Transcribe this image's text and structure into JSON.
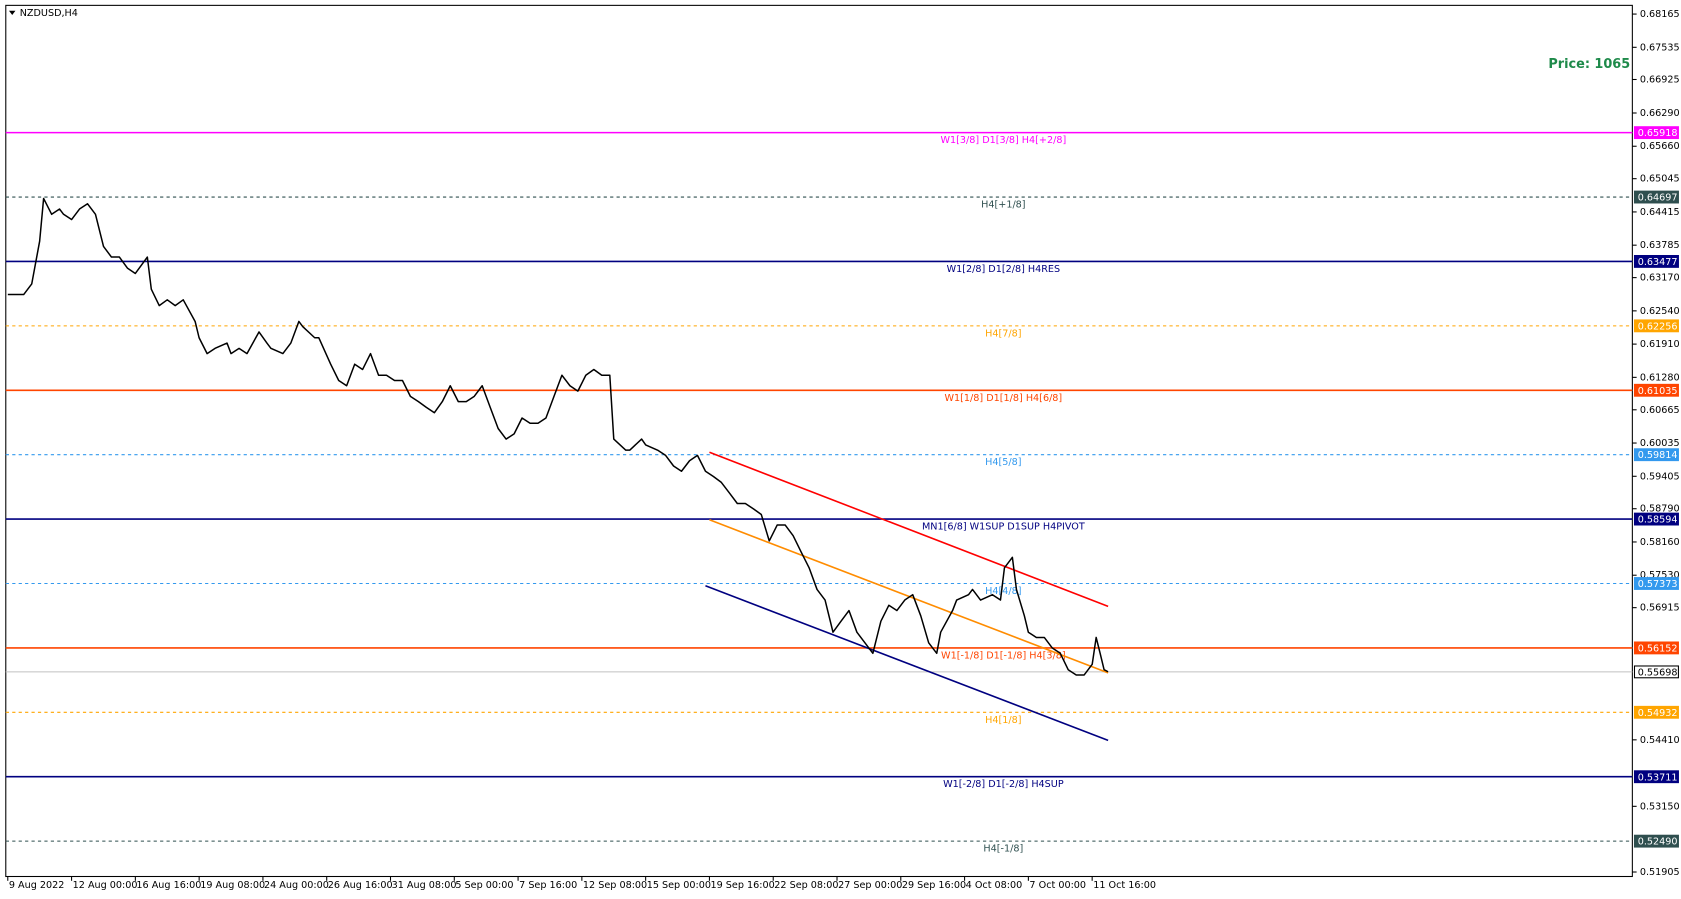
{
  "chart_data": {
    "type": "line",
    "title": "NZDUSD,H4",
    "annotation": "Price: 1065",
    "color": "#000000",
    "x": [
      0,
      4,
      6,
      8,
      9,
      11,
      13,
      14,
      16,
      18,
      20,
      22,
      24,
      26,
      28,
      30,
      32,
      35,
      36,
      38,
      40,
      42,
      44,
      47,
      48,
      50,
      52,
      55,
      56,
      58,
      60,
      63,
      65,
      66,
      69,
      71,
      73,
      74,
      77,
      78,
      81,
      83,
      85,
      87,
      89,
      91,
      93,
      95,
      97,
      99,
      101,
      103,
      105,
      107,
      109,
      111,
      113,
      115,
      117,
      119,
      121,
      123,
      125,
      127,
      129,
      131,
      133,
      135,
      137,
      139,
      141,
      143,
      145,
      147,
      149,
      151,
      152,
      155,
      156,
      159,
      160,
      163,
      165,
      167,
      169,
      171,
      173,
      175,
      177,
      179,
      181,
      183,
      185,
      187,
      189,
      191,
      193,
      195,
      197,
      199,
      201,
      203,
      205,
      207,
      209,
      211,
      213,
      215,
      217,
      219,
      221,
      223,
      225,
      227,
      229,
      231,
      233,
      234,
      237,
      238,
      241,
      242,
      244,
      247,
      249,
      250,
      252,
      253,
      255,
      256,
      258,
      260,
      262,
      264,
      266,
      268,
      270,
      272,
      273,
      274,
      275,
      276
    ],
    "values": [
      0.6285,
      0.6285,
      0.6305,
      0.6386,
      0.6467,
      0.6437,
      0.6447,
      0.6437,
      0.6427,
      0.6447,
      0.6457,
      0.6437,
      0.6376,
      0.6356,
      0.6356,
      0.6335,
      0.6325,
      0.6356,
      0.6295,
      0.6264,
      0.6275,
      0.6264,
      0.6275,
      0.6234,
      0.6203,
      0.6173,
      0.6183,
      0.6193,
      0.6173,
      0.6183,
      0.6173,
      0.6214,
      0.6193,
      0.6183,
      0.6173,
      0.6193,
      0.6234,
      0.6224,
      0.6203,
      0.6203,
      0.6153,
      0.6122,
      0.6112,
      0.6153,
      0.6143,
      0.6173,
      0.6132,
      0.6132,
      0.6122,
      0.6122,
      0.6092,
      0.6082,
      0.6071,
      0.6061,
      0.6082,
      0.6112,
      0.6082,
      0.6082,
      0.6092,
      0.6112,
      0.6071,
      0.6031,
      0.6011,
      0.6021,
      0.6051,
      0.6041,
      0.6041,
      0.6051,
      0.6092,
      0.6132,
      0.6112,
      0.6102,
      0.6132,
      0.6143,
      0.6132,
      0.6132,
      0.6011,
      0.599,
      0.599,
      0.6011,
      0.6,
      0.599,
      0.598,
      0.596,
      0.595,
      0.597,
      0.598,
      0.595,
      0.594,
      0.5929,
      0.5909,
      0.5889,
      0.5889,
      0.5879,
      0.5868,
      0.5818,
      0.5848,
      0.5848,
      0.5828,
      0.5797,
      0.5767,
      0.5726,
      0.5706,
      0.5645,
      0.5666,
      0.5686,
      0.5645,
      0.5625,
      0.5605,
      0.5666,
      0.5696,
      0.5686,
      0.5706,
      0.5716,
      0.5676,
      0.5625,
      0.5605,
      0.5645,
      0.5686,
      0.5706,
      0.5716,
      0.5726,
      0.5706,
      0.5716,
      0.5706,
      0.5767,
      0.5787,
      0.5726,
      0.5676,
      0.5645,
      0.5635,
      0.5635,
      0.5615,
      0.5605,
      0.5574,
      0.5564,
      0.5564,
      0.5584,
      0.5635,
      0.5605,
      0.5574,
      0.557
    ],
    "xlim": [
      -0.5,
      407.5
    ],
    "ylim": [
      0.5182,
      0.6833
    ],
    "xticks": [
      {
        "value": 0,
        "label": "9 Aug 2022"
      },
      {
        "value": 16,
        "label": "12 Aug 00:00"
      },
      {
        "value": 32,
        "label": "16 Aug 16:00"
      },
      {
        "value": 48,
        "label": "19 Aug 08:00"
      },
      {
        "value": 64,
        "label": "24 Aug 00:00"
      },
      {
        "value": 80,
        "label": "26 Aug 16:00"
      },
      {
        "value": 96,
        "label": "31 Aug 08:00"
      },
      {
        "value": 112,
        "label": "5 Sep 00:00"
      },
      {
        "value": 128,
        "label": "7 Sep 16:00"
      },
      {
        "value": 144,
        "label": "12 Sep 08:00"
      },
      {
        "value": 160,
        "label": "15 Sep 00:00"
      },
      {
        "value": 176,
        "label": "19 Sep 16:00"
      },
      {
        "value": 192,
        "label": "22 Sep 08:00"
      },
      {
        "value": 208,
        "label": "27 Sep 00:00"
      },
      {
        "value": 224,
        "label": "29 Sep 16:00"
      },
      {
        "value": 240,
        "label": "4 Oct 08:00"
      },
      {
        "value": 256,
        "label": "7 Oct 00:00"
      },
      {
        "value": 272,
        "label": "11 Oct 16:00"
      }
    ],
    "yticks": [
      0.68165,
      0.67535,
      0.66925,
      {
        "value": 0.6629,
        "label": "0.66290"
      },
      {
        "value": 0.6566,
        "label": "0.65660"
      },
      0.65045,
      0.64415,
      0.63785,
      {
        "value": 0.6317,
        "label": "0.63170"
      },
      {
        "value": 0.6254,
        "label": "0.62540"
      },
      {
        "value": 0.6191,
        "label": "0.61910"
      },
      {
        "value": 0.6128,
        "label": "0.61280"
      },
      0.60665,
      0.60035,
      0.59405,
      {
        "value": 0.5879,
        "label": "0.58790"
      },
      {
        "value": 0.5816,
        "label": "0.58160"
      },
      {
        "value": 0.5753,
        "label": "0.57530"
      },
      0.56915,
      {
        "value": 0.5441,
        "label": "0.54410"
      },
      {
        "value": 0.5315,
        "label": "0.53150"
      },
      0.51905
    ],
    "levels": [
      {
        "value": 0.65918,
        "text": "W1[3/8] D1[3/8] H4[+2/8]",
        "color": "#ff00ff",
        "dashed": false
      },
      {
        "value": 0.64697,
        "text": "H4[+1/8]",
        "color": "#2f4f4f",
        "dashed": true
      },
      {
        "value": 0.63477,
        "text": "W1[2/8] D1[2/8] H4RES",
        "color": "#000080",
        "dashed": false
      },
      {
        "value": 0.62256,
        "text": "H4[7/8]",
        "color": "#ffa500",
        "dashed": true
      },
      {
        "value": 0.61035,
        "text": "W1[1/8] D1[1/8] H4[6/8]",
        "color": "#ff4500",
        "dashed": false
      },
      {
        "value": 0.59814,
        "text": "H4[5/8]",
        "color": "#3399ee",
        "dashed": true
      },
      {
        "value": 0.58594,
        "text": "MN1[6/8] W1SUP D1SUP H4PIVOT",
        "color": "#000080",
        "dashed": false
      },
      {
        "value": 0.57373,
        "text": "H4[4/8]",
        "color": "#3399ee",
        "dashed": true
      },
      {
        "value": 0.56152,
        "text": "W1[-1/8] D1[-1/8] H4[3/8]",
        "color": "#ff4500",
        "dashed": false
      },
      {
        "value": 0.54932,
        "text": "H4[1/8]",
        "color": "#ffa500",
        "dashed": true
      },
      {
        "value": 0.53711,
        "text": "W1[-2/8] D1[-2/8] H4SUP",
        "color": "#000080",
        "dashed": false
      },
      {
        "value": {
          "value": 0.5249,
          "label": "0.52490"
        },
        "text": "H4[-1/8]",
        "color": "#2f4f4f",
        "dashed": true
      }
    ],
    "current_price": 0.55698,
    "trendlines": [
      {
        "color": "#ff0000",
        "x": [
          176,
          276
        ],
        "values": [
          0.5986,
          0.5694
        ]
      },
      {
        "color": "#ff8c00",
        "x": [
          176,
          276
        ],
        "values": [
          0.5858,
          0.5568
        ]
      },
      {
        "color": "#000080",
        "x": [
          175,
          276
        ],
        "values": [
          0.5733,
          0.544
        ]
      }
    ]
  }
}
